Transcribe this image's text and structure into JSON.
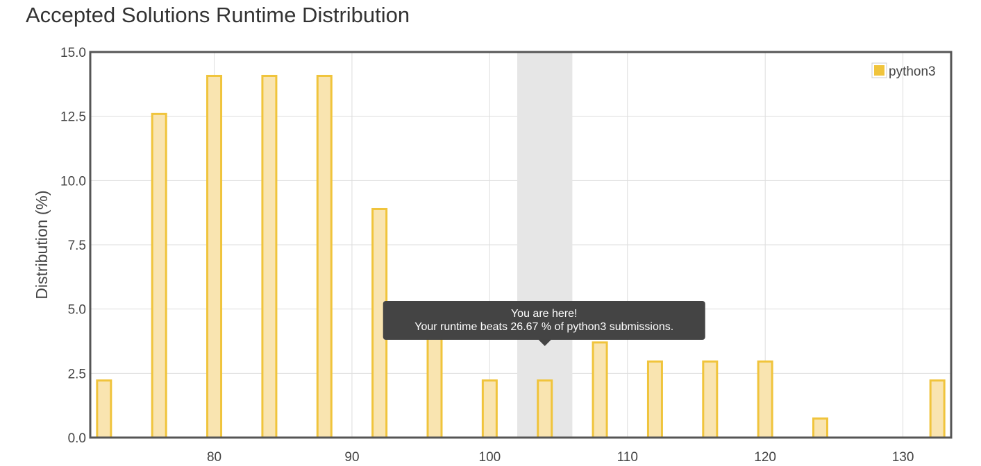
{
  "title": "Accepted Solutions Runtime Distribution",
  "chart_data": {
    "type": "bar",
    "ylabel": "Distribution (%)",
    "xlabel": "",
    "ylim": [
      0,
      15
    ],
    "xlim": [
      71,
      133.5
    ],
    "y_ticks": [
      "0.0",
      "2.5",
      "5.0",
      "7.5",
      "10.0",
      "12.5",
      "15.0"
    ],
    "x_ticks": [
      "80",
      "90",
      "100",
      "110",
      "120",
      "130"
    ],
    "grid": true,
    "legend_position": "top-right",
    "series": [
      {
        "name": "python3",
        "color": "#f0c43c",
        "fill": "#f9e4b0",
        "x": [
          72,
          76,
          80,
          84,
          88,
          92,
          96,
          100,
          104,
          108,
          112,
          116,
          120,
          124,
          132.5
        ],
        "values": [
          2.22,
          12.59,
          14.07,
          14.07,
          14.07,
          8.89,
          4.44,
          2.22,
          2.22,
          3.7,
          2.96,
          2.96,
          2.96,
          0.74,
          2.22
        ]
      }
    ],
    "highlight": {
      "x_from": 102,
      "x_to": 106,
      "color": "#e6e6e6"
    },
    "annotation": {
      "line1": "You are here!",
      "line2": "Your runtime beats 26.67 % of python3 submissions.",
      "anchor_x": 104
    }
  }
}
